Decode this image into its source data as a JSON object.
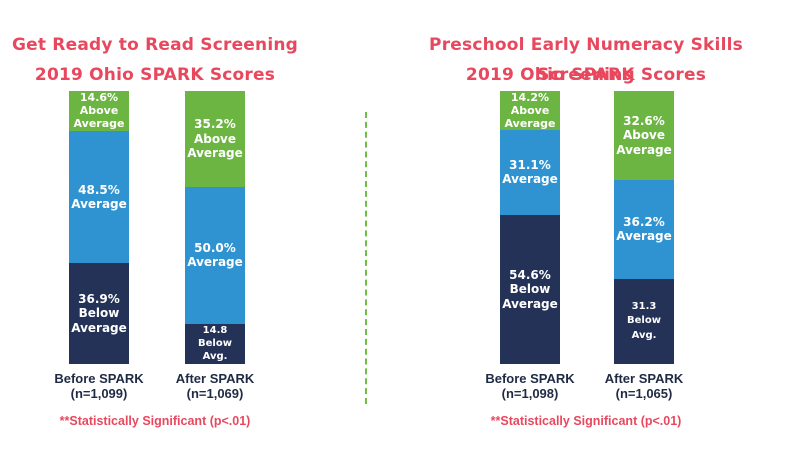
{
  "colors": {
    "above": "#6cb543",
    "average": "#2f93d1",
    "below": "#243257",
    "title": "#e8485e",
    "divider": "#6cbf43"
  },
  "chart_data": [
    {
      "type": "bar",
      "stacked": true,
      "title": "Get Ready to Read Screening",
      "subtitle": "2019 Ohio SPARK Scores",
      "categories": [
        "Before SPARK",
        "After SPARK"
      ],
      "category_sublabels": [
        "(n=1,099)",
        "(n=1,069)"
      ],
      "series": [
        {
          "key": "below",
          "values": [
            36.9,
            14.8
          ],
          "labels": [
            "36.9%\nBelow\nAverage",
            "14.8\nBelow Avg."
          ]
        },
        {
          "key": "average",
          "values": [
            48.5,
            50.0
          ],
          "labels": [
            "48.5%\nAverage",
            "50.0%\nAverage"
          ]
        },
        {
          "key": "above",
          "values": [
            14.6,
            35.2
          ],
          "labels": [
            "14.6%\nAbove\nAverage",
            "35.2%\nAbove\nAverage"
          ]
        }
      ],
      "ylim": [
        0,
        100
      ],
      "footnote": "**Statistically Significant (p<.01)"
    },
    {
      "type": "bar",
      "stacked": true,
      "title": "Preschool Early Numeracy Skills Screening",
      "subtitle": "2019 Ohio SPARK Scores",
      "categories": [
        "Before SPARK",
        "After SPARK"
      ],
      "category_sublabels": [
        "(n=1,098)",
        "(n=1,065)"
      ],
      "series": [
        {
          "key": "below",
          "values": [
            54.6,
            31.3
          ],
          "labels": [
            "54.6%\nBelow\nAverage",
            "31.3\nBelow Avg."
          ]
        },
        {
          "key": "average",
          "values": [
            31.1,
            36.2
          ],
          "labels": [
            "31.1%\nAverage",
            "36.2%\nAverage"
          ]
        },
        {
          "key": "above",
          "values": [
            14.2,
            32.6
          ],
          "labels": [
            "14.2%\nAbove\nAverage",
            "32.6%\nAbove\nAverage"
          ]
        }
      ],
      "ylim": [
        0,
        100
      ],
      "footnote": "**Statistically Significant (p<.01)"
    }
  ]
}
